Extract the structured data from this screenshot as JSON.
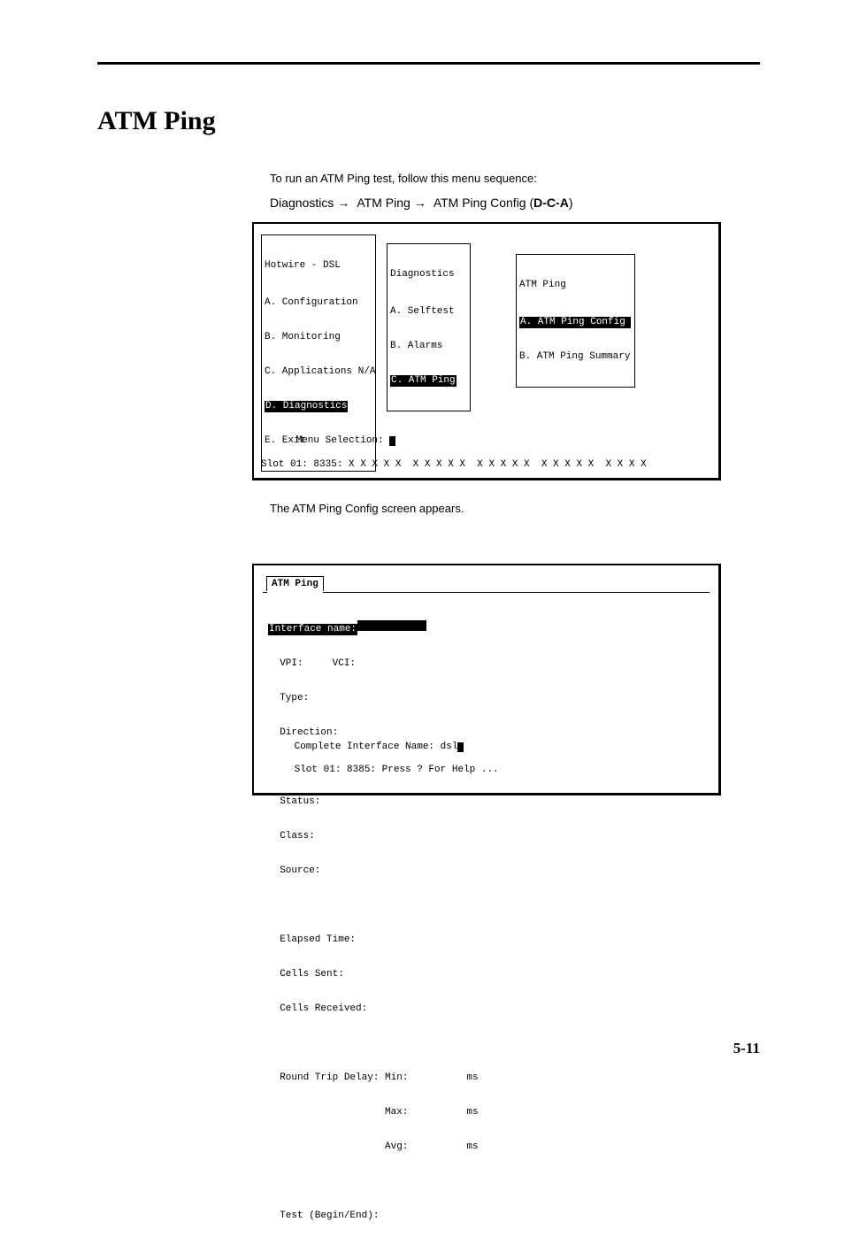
{
  "page": {
    "title": "ATM Ping",
    "nav": {
      "seg1": "Diagnostics",
      "seg2": "ATM Ping",
      "seg3": "ATM Ping Config (",
      "code": "D-C-A",
      "seg3_end": ")",
      "prefix": "To run an ATM Ping test, follow this menu sequence:"
    },
    "intertext": "The ATM Ping Config screen appears.",
    "page_number": "5-11"
  },
  "screenshot1": {
    "menu1": {
      "title": "Hotwire - DSL",
      "items": [
        "A. Configuration",
        "B. Monitoring",
        "C. Applications N/A",
        "D. Diagnostics",
        "E. Exit"
      ],
      "selected_index": 3
    },
    "menu2": {
      "title": "Diagnostics",
      "items": [
        "A. Selftest",
        "B. Alarms",
        "C. ATM Ping"
      ],
      "selected_index": 2
    },
    "menu3": {
      "title": "ATM Ping",
      "items": [
        "A. ATM Ping Config",
        "B. ATM Ping Summary"
      ],
      "selected_index": 0
    },
    "menu_selection_label": "Menu Selection: ",
    "slot_line": "Slot 01: 8335: X X X X X  X X X X X  X X X X X  X X X X X  X X X X"
  },
  "screenshot2": {
    "tab_label": "ATM Ping",
    "fields": {
      "interface_name": "Interface name:",
      "vpi_vci": "  VPI:     VCI:",
      "type": "  Type:",
      "direction": "  Direction:",
      "status": "  Status:",
      "class": "  Class:",
      "source": "  Source:",
      "elapsed": "  Elapsed Time:",
      "sent": "  Cells Sent:",
      "recv": "  Cells Received:",
      "rtd": "  Round Trip Delay: Min:          ms",
      "rtd2": "                    Max:          ms",
      "rtd3": "                    Avg:          ms",
      "test": "  Test (Begin/End):"
    },
    "footer1": "Complete Interface Name: dsl",
    "footer2": "Slot 01: 8385: Press ? For Help ..."
  }
}
